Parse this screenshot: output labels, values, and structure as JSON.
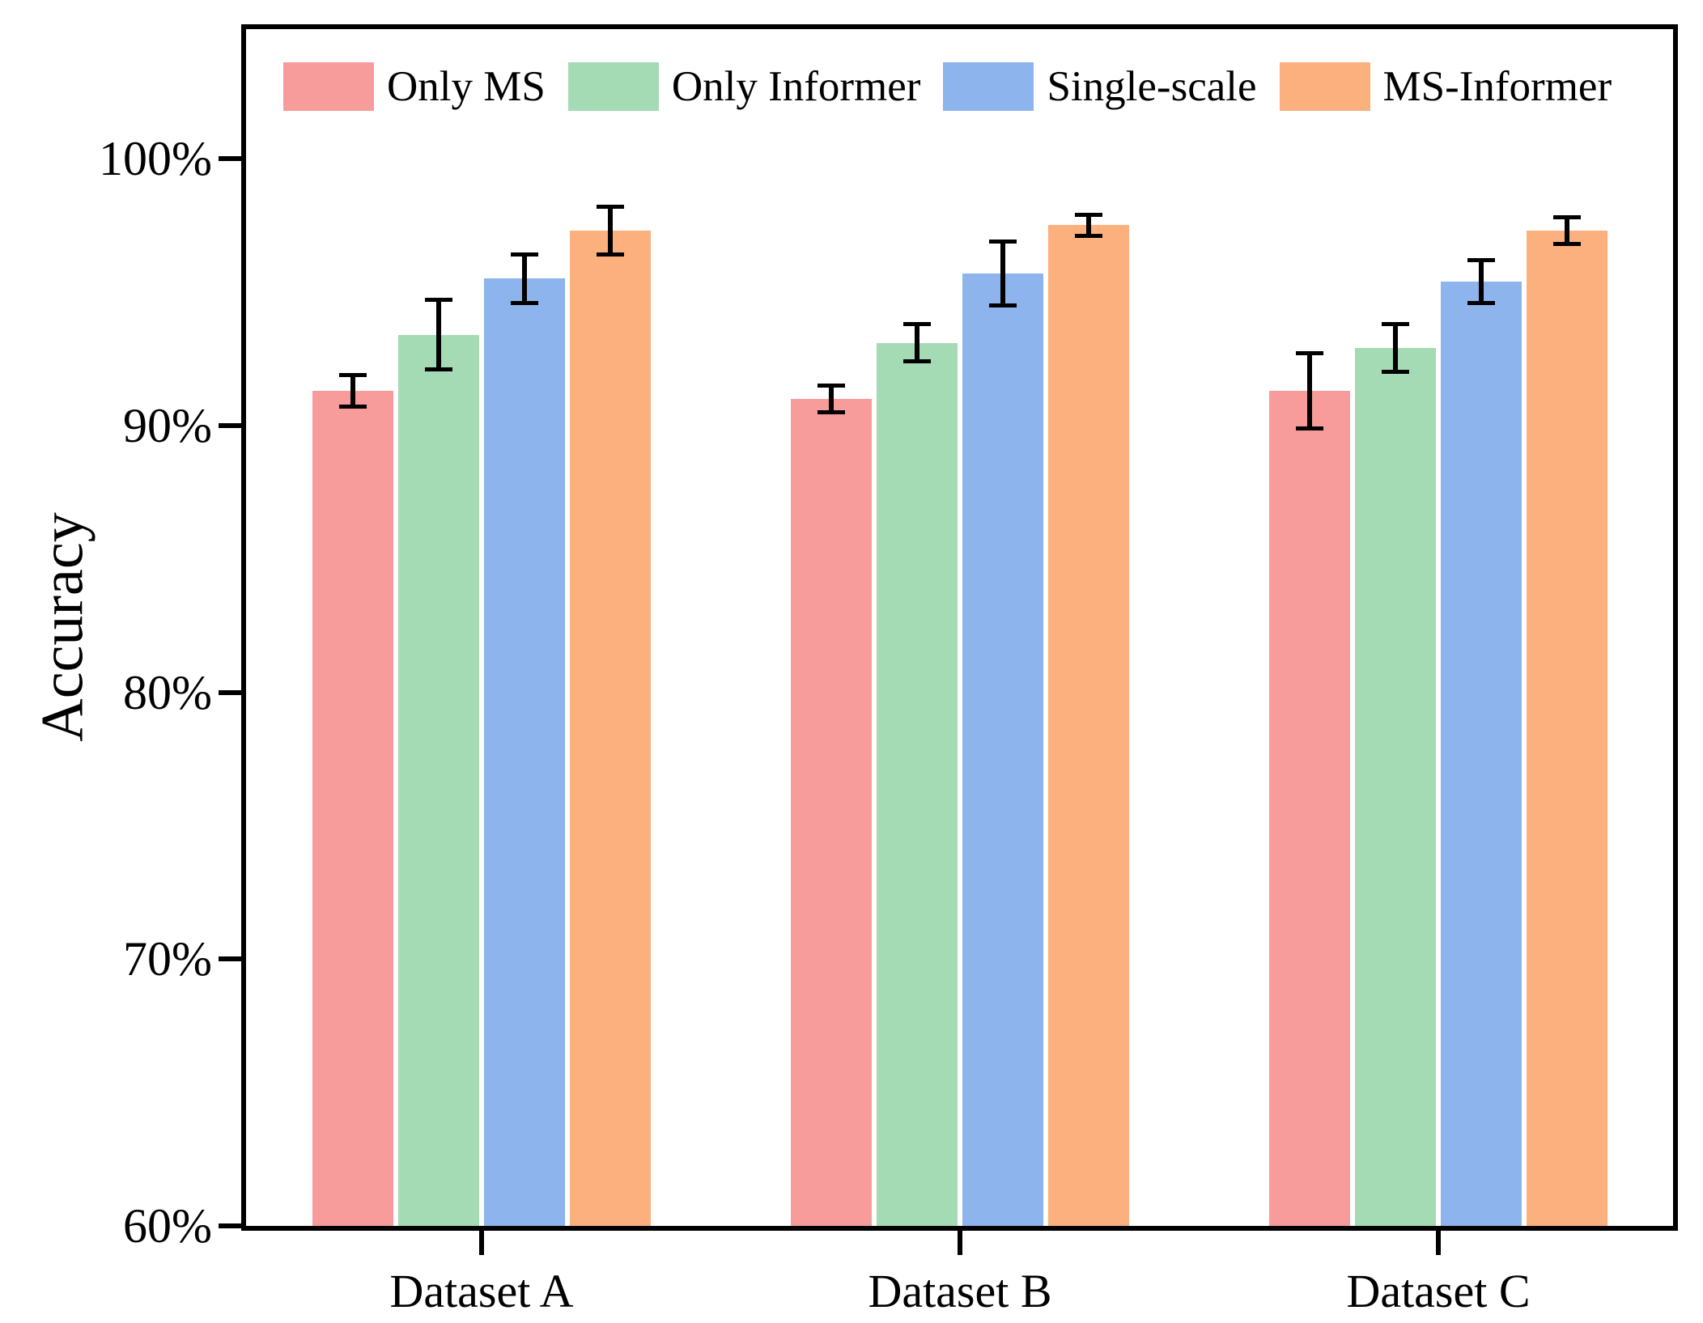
{
  "chart_data": {
    "type": "bar",
    "title": "",
    "xlabel": "",
    "ylabel": "Accuracy",
    "categories": [
      "Dataset A",
      "Dataset B",
      "Dataset C"
    ],
    "series": [
      {
        "name": "Only MS",
        "color": "#F79B9B",
        "values": [
          91.3,
          91.0,
          91.3
        ],
        "errors": [
          0.6,
          0.5,
          1.4
        ]
      },
      {
        "name": "Only Informer",
        "color": "#A4DBB4",
        "values": [
          93.4,
          93.1,
          92.9
        ],
        "errors": [
          1.3,
          0.7,
          0.9
        ]
      },
      {
        "name": "Single-scale",
        "color": "#8DB4ED",
        "values": [
          95.5,
          95.7,
          95.4
        ],
        "errors": [
          0.9,
          1.2,
          0.8
        ]
      },
      {
        "name": "MS-Informer",
        "color": "#FBB07D",
        "values": [
          97.3,
          97.5,
          97.3
        ],
        "errors": [
          0.9,
          0.4,
          0.5
        ]
      }
    ],
    "error_bars": true,
    "error_bar_color": "#000000",
    "ylim": [
      60,
      105
    ],
    "yticks": [
      100,
      90,
      80,
      70,
      60
    ],
    "ytick_labels": [
      "100%",
      "90%",
      "80%",
      "70%",
      "60%"
    ],
    "ytick_format": "percent",
    "grid": false,
    "legend_position": "upper left inside plot"
  }
}
